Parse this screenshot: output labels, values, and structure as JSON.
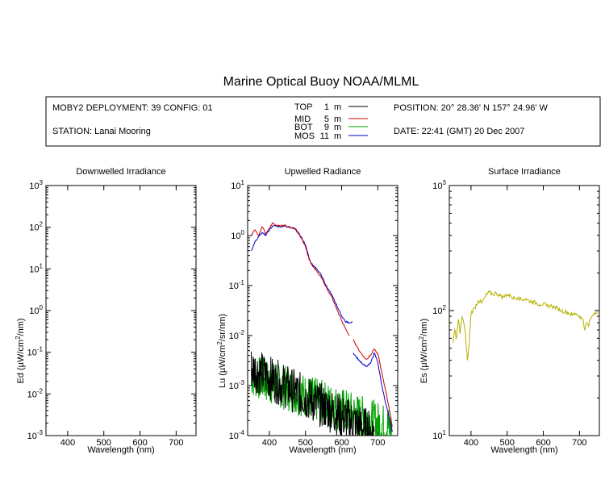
{
  "title": "Marine Optical Buoy NOAA/MLML",
  "info": {
    "deployment": "MOBY2 DEPLOYMENT: 39 CONFIG: 01",
    "station": "STATION: Lanai Mooring",
    "position": "POSITION: 20° 28.36' N   157° 24.96' W",
    "date": "DATE: 22:41 (GMT) 20 Dec 2007"
  },
  "depth_legend": [
    {
      "name": "TOP",
      "depth": "1",
      "unit": "m",
      "color": "#000000"
    },
    {
      "name": "MID",
      "depth": "5",
      "unit": "m",
      "color": "#cc0000"
    },
    {
      "name": "BOT",
      "depth": "9",
      "unit": "m",
      "color": "#00a000"
    },
    {
      "name": "MOS",
      "depth": "11",
      "unit": "m",
      "color": "#0000cc"
    }
  ],
  "chart_data": [
    {
      "type": "line",
      "title": "Downwelled Irradiance",
      "xlabel": "Wavelength (nm)",
      "ylabel_main": "Ed  (µW/cm",
      "ylabel_sup": "2",
      "ylabel_tail": "/nm)",
      "yscale": "log",
      "xlim": [
        340,
        755
      ],
      "ylim": [
        0.001,
        1000
      ],
      "xticks": [
        "400",
        "500",
        "600",
        "700"
      ],
      "xtick_values": [
        400,
        500,
        600,
        700
      ],
      "yticks": [
        {
          "base": "10",
          "exp": "-3",
          "value": 0.001
        },
        {
          "base": "10",
          "exp": "-2",
          "value": 0.01
        },
        {
          "base": "10",
          "exp": "-1",
          "value": 0.1
        },
        {
          "base": "10",
          "exp": "0",
          "value": 1
        },
        {
          "base": "10",
          "exp": "1",
          "value": 10
        },
        {
          "base": "10",
          "exp": "2",
          "value": 100
        },
        {
          "base": "10",
          "exp": "3",
          "value": 1000
        }
      ],
      "series": []
    },
    {
      "type": "line",
      "title": "Upwelled Radiance",
      "xlabel": "Wavelength (nm)",
      "ylabel_main": "Lu  (µW/cm",
      "ylabel_sup": "2",
      "ylabel_tail": "/sr/nm)",
      "yscale": "log",
      "xlim": [
        340,
        755
      ],
      "ylim": [
        0.0001,
        10
      ],
      "xticks": [
        "400",
        "500",
        "600",
        "700"
      ],
      "xtick_values": [
        400,
        500,
        600,
        700
      ],
      "yticks": [
        {
          "base": "10",
          "exp": "-4",
          "value": 0.0001
        },
        {
          "base": "10",
          "exp": "-3",
          "value": 0.001
        },
        {
          "base": "10",
          "exp": "-2",
          "value": 0.01
        },
        {
          "base": "10",
          "exp": "-1",
          "value": 0.1
        },
        {
          "base": "10",
          "exp": "0",
          "value": 1
        },
        {
          "base": "10",
          "exp": "1",
          "value": 10
        }
      ],
      "series": [
        {
          "color": "#0000cc",
          "x": [
            350,
            360,
            370,
            380,
            390,
            400,
            410,
            420,
            430,
            440,
            450,
            460,
            470,
            480,
            490,
            500,
            510,
            520,
            530,
            540,
            550,
            560,
            570,
            580,
            590,
            600,
            610,
            620,
            630
          ],
          "y": [
            0.5,
            0.75,
            0.95,
            1.15,
            1.0,
            1.3,
            1.55,
            1.55,
            1.5,
            1.55,
            1.5,
            1.45,
            1.4,
            1.15,
            0.9,
            0.65,
            0.35,
            0.25,
            0.22,
            0.18,
            0.13,
            0.09,
            0.07,
            0.05,
            0.035,
            0.025,
            0.019,
            0.018,
            0.019
          ]
        },
        {
          "color": "#0000cc",
          "x": [
            632,
            640,
            650,
            660,
            670,
            680,
            690,
            700,
            710,
            720,
            730,
            740
          ],
          "y": [
            0.0045,
            0.0038,
            0.0031,
            0.0026,
            0.0024,
            0.0028,
            0.0045,
            0.003,
            0.0011,
            0.0005,
            0.00025,
            0.00012
          ]
        },
        {
          "color": "#cc0000",
          "x": [
            350,
            360,
            370,
            380,
            390,
            400,
            410,
            420,
            430,
            440,
            450,
            460,
            470,
            480,
            490,
            500,
            510,
            520,
            530,
            540,
            550,
            560,
            570,
            580,
            590,
            600,
            610,
            620
          ],
          "y": [
            1.05,
            1.3,
            1.0,
            1.5,
            1.1,
            1.4,
            1.8,
            1.6,
            1.55,
            1.6,
            1.5,
            1.45,
            1.35,
            1.1,
            0.85,
            0.6,
            0.33,
            0.24,
            0.2,
            0.16,
            0.12,
            0.085,
            0.065,
            0.045,
            0.03,
            0.02,
            0.014,
            0.01
          ]
        },
        {
          "color": "#cc0000",
          "x": [
            632,
            640,
            650,
            660,
            670,
            680,
            690,
            700,
            710,
            720,
            730,
            740
          ],
          "y": [
            0.0085,
            0.0063,
            0.0048,
            0.0038,
            0.0034,
            0.0041,
            0.0054,
            0.0044,
            0.002,
            0.0009,
            0.0004,
            0.00015
          ]
        }
      ],
      "noise": [
        {
          "color": "#00a000",
          "x0": 350,
          "x1": 740,
          "ystart": 0.0018,
          "yend": 0.00015
        },
        {
          "color": "#000000",
          "x0": 350,
          "x1": 690,
          "ystart": 0.0025,
          "yend": 0.00012
        }
      ]
    },
    {
      "type": "line",
      "title": "Surface Irradiance",
      "xlabel": "Wavelength (nm)",
      "ylabel_main": "Es  (µW/cm",
      "ylabel_sup": "2",
      "ylabel_tail": "/nm)",
      "yscale": "log",
      "xlim": [
        340,
        755
      ],
      "ylim": [
        10,
        1000
      ],
      "xticks": [
        "400",
        "500",
        "600",
        "700"
      ],
      "xtick_values": [
        400,
        500,
        600,
        700
      ],
      "yticks": [
        {
          "base": "10",
          "exp": "1",
          "value": 10
        },
        {
          "base": "10",
          "exp": "2",
          "value": 100
        },
        {
          "base": "10",
          "exp": "3",
          "value": 1000
        }
      ],
      "series": [
        {
          "color": "#b5b000",
          "x": [
            350,
            355,
            360,
            365,
            370,
            375,
            380,
            385,
            390,
            395,
            400,
            410,
            420,
            430,
            440,
            450,
            460,
            470,
            480,
            490,
            500,
            510,
            520,
            530,
            540,
            550,
            560,
            570,
            580,
            590,
            600,
            610,
            620,
            630,
            640,
            650,
            660,
            670,
            680,
            690,
            700,
            710,
            715,
            720,
            725,
            730,
            735,
            740,
            750
          ],
          "y": [
            55,
            70,
            60,
            85,
            65,
            90,
            80,
            62,
            40,
            55,
            95,
            105,
            120,
            115,
            130,
            140,
            135,
            138,
            132,
            128,
            135,
            130,
            125,
            128,
            122,
            124,
            120,
            118,
            115,
            112,
            113,
            108,
            110,
            106,
            104,
            100,
            98,
            96,
            92,
            95,
            90,
            85,
            70,
            80,
            75,
            85,
            90,
            95,
            100
          ]
        }
      ]
    }
  ]
}
